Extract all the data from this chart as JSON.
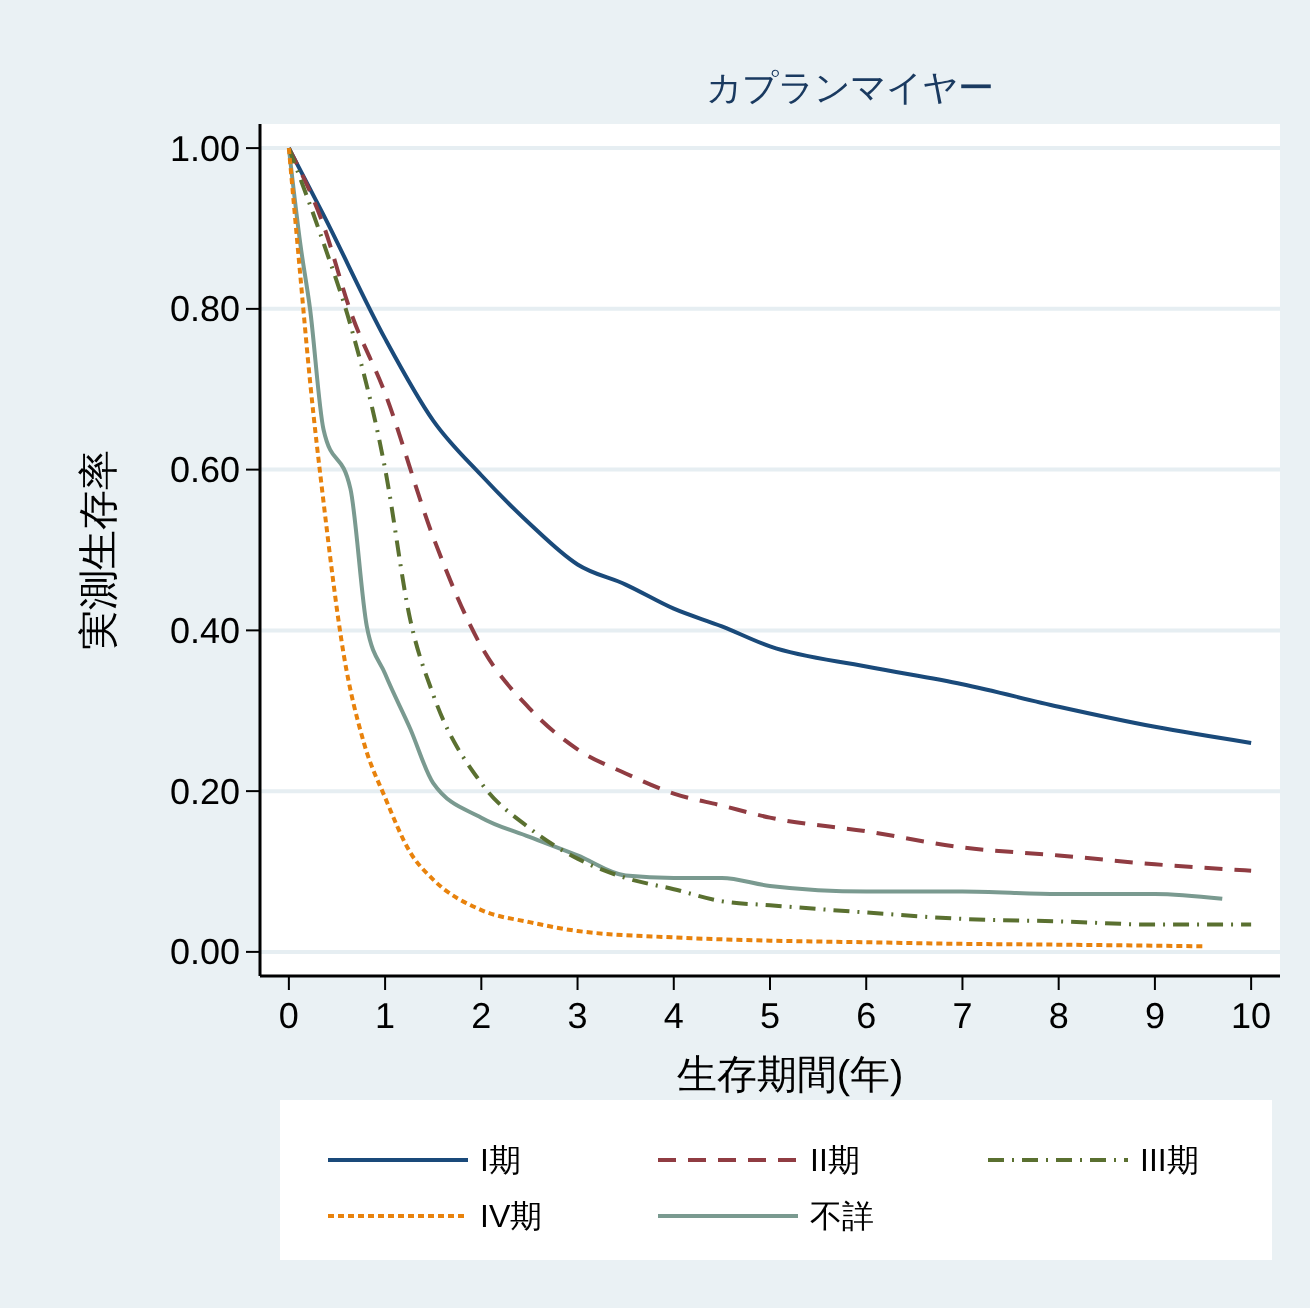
{
  "chart_data": {
    "type": "line",
    "title": "カプランマイヤー",
    "xlabel": "生存期間(年)",
    "ylabel": "実測生存率",
    "xlim": [
      -0.3,
      10.3
    ],
    "xticks": [
      0,
      1,
      2,
      3,
      4,
      5,
      6,
      7,
      8,
      9,
      10
    ],
    "ylim": [
      -0.03,
      1.03
    ],
    "yticks": [
      {
        "value": 0,
        "label": "0.00"
      },
      {
        "value": 0.2,
        "label": "0.20"
      },
      {
        "value": 0.4,
        "label": "0.40"
      },
      {
        "value": 0.6,
        "label": "0.60"
      },
      {
        "value": 0.8,
        "label": "0.80"
      },
      {
        "value": 1,
        "label": "1.00"
      }
    ],
    "grid": "y",
    "legend": "bottom",
    "series": [
      {
        "name": "I期",
        "color": "#1a4a7a",
        "line_style": "solid",
        "x": [
          0,
          0.36,
          1,
          1.5,
          2,
          2.5,
          3,
          3.5,
          4,
          4.5,
          5,
          6,
          7,
          8,
          9,
          10
        ],
        "values": [
          1,
          0.917,
          0.763,
          0.661,
          0.593,
          0.533,
          0.482,
          0.457,
          0.427,
          0.405,
          0.38,
          0.355,
          0.333,
          0.305,
          0.28,
          0.26
        ]
      },
      {
        "name": "II期",
        "color": "#903c42",
        "line_style": "dashed",
        "x": [
          0,
          0.36,
          0.64,
          1,
          1.5,
          2,
          2.5,
          3,
          3.5,
          4,
          4.5,
          5,
          6,
          7,
          8,
          9,
          10
        ],
        "values": [
          1,
          0.904,
          0.797,
          0.695,
          0.516,
          0.38,
          0.303,
          0.252,
          0.222,
          0.197,
          0.182,
          0.167,
          0.15,
          0.13,
          0.12,
          0.109,
          0.101
        ]
      },
      {
        "name": "III期",
        "color": "#5a7030",
        "line_style": "dashdot",
        "x": [
          0,
          0.36,
          0.64,
          1,
          1.26,
          1.5,
          2,
          2.5,
          3,
          3.5,
          4,
          4.5,
          5,
          6,
          7,
          8,
          9,
          10
        ],
        "values": [
          1,
          0.882,
          0.78,
          0.601,
          0.414,
          0.32,
          0.21,
          0.154,
          0.116,
          0.092,
          0.078,
          0.063,
          0.058,
          0.049,
          0.041,
          0.038,
          0.034,
          0.034
        ]
      },
      {
        "name": "IV期",
        "color": "#e8820c",
        "line_style": "dotted",
        "x": [
          0,
          0.12,
          0.22,
          0.36,
          0.57,
          0.78,
          1,
          1.26,
          1.5,
          2,
          2.5,
          3,
          4,
          5,
          6,
          7,
          8,
          9.5
        ],
        "values": [
          1,
          0.84,
          0.71,
          0.56,
          0.37,
          0.26,
          0.192,
          0.124,
          0.09,
          0.052,
          0.037,
          0.026,
          0.018,
          0.014,
          0.012,
          0.01,
          0.009,
          0.007
        ]
      },
      {
        "name": "不詳",
        "color": "#7a9a90",
        "line_style": "solid",
        "x": [
          0,
          0.12,
          0.22,
          0.36,
          0.64,
          0.81,
          1,
          1.26,
          1.5,
          2,
          2.5,
          3,
          3.5,
          4,
          4.5,
          5,
          6,
          7,
          8,
          9,
          9.7
        ],
        "values": [
          1,
          0.88,
          0.8,
          0.65,
          0.576,
          0.405,
          0.346,
          0.278,
          0.21,
          0.167,
          0.143,
          0.12,
          0.095,
          0.092,
          0.092,
          0.082,
          0.075,
          0.075,
          0.072,
          0.072,
          0.066
        ]
      }
    ]
  }
}
